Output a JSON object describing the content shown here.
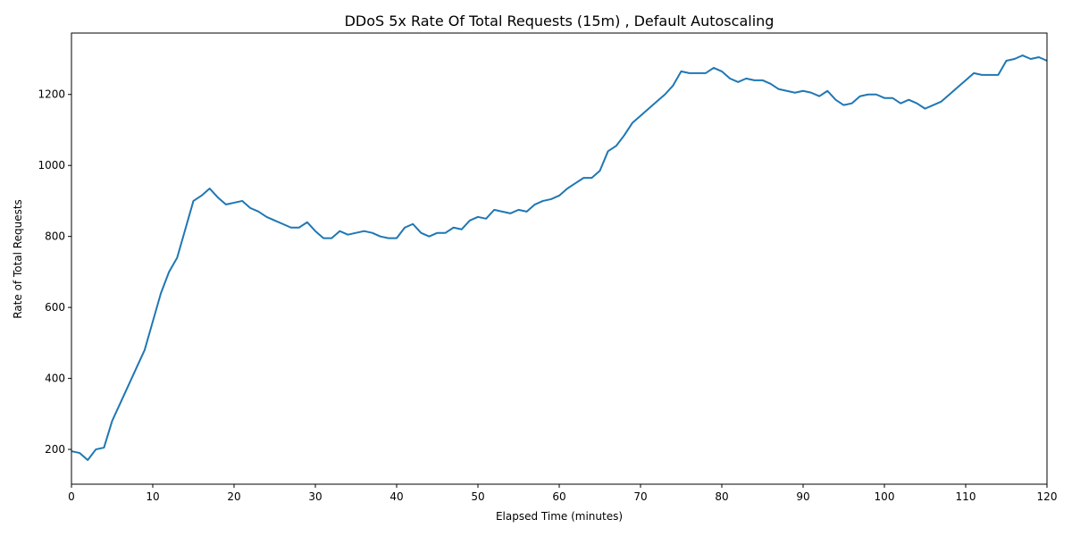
{
  "chart_data": {
    "type": "line",
    "title": "DDoS 5x Rate Of Total Requests (15m) , Default Autoscaling",
    "x_label": "Elapsed Time (minutes)",
    "y_label": "Rate of Total Requests",
    "x": [
      0,
      1,
      2,
      3,
      4,
      5,
      6,
      7,
      8,
      9,
      10,
      11,
      12,
      13,
      14,
      15,
      16,
      17,
      18,
      19,
      20,
      21,
      22,
      23,
      24,
      25,
      26,
      27,
      28,
      29,
      30,
      31,
      32,
      33,
      34,
      35,
      36,
      37,
      38,
      39,
      40,
      41,
      42,
      43,
      44,
      45,
      46,
      47,
      48,
      49,
      50,
      51,
      52,
      53,
      54,
      55,
      56,
      57,
      58,
      59,
      60,
      61,
      62,
      63,
      64,
      65,
      66,
      67,
      68,
      69,
      70,
      71,
      72,
      73,
      74,
      75,
      76,
      77,
      78,
      79,
      80,
      81,
      82,
      83,
      84,
      85,
      86,
      87,
      88,
      89,
      90,
      91,
      92,
      93,
      94,
      95,
      96,
      97,
      98,
      99,
      100,
      101,
      102,
      103,
      104,
      105,
      106,
      107,
      108,
      109,
      110,
      111,
      112,
      113,
      114,
      115,
      116,
      117,
      118,
      119,
      120
    ],
    "series": [
      {
        "name": "Rate of Total Requests",
        "color": "#1f77b4",
        "values": [
          195,
          190,
          170,
          200,
          205,
          280,
          330,
          380,
          430,
          480,
          560,
          640,
          700,
          740,
          820,
          900,
          915,
          935,
          910,
          890,
          895,
          900,
          880,
          870,
          855,
          845,
          835,
          825,
          825,
          840,
          815,
          795,
          795,
          815,
          805,
          810,
          815,
          810,
          800,
          795,
          795,
          825,
          835,
          810,
          800,
          810,
          810,
          825,
          820,
          845,
          855,
          850,
          875,
          870,
          865,
          875,
          870,
          890,
          900,
          905,
          915,
          935,
          950,
          965,
          965,
          985,
          1040,
          1055,
          1085,
          1120,
          1140,
          1160,
          1180,
          1200,
          1225,
          1265,
          1260,
          1260,
          1260,
          1275,
          1265,
          1245,
          1235,
          1245,
          1240,
          1240,
          1230,
          1215,
          1210,
          1205,
          1210,
          1205,
          1195,
          1210,
          1185,
          1170,
          1175,
          1195,
          1200,
          1200,
          1190,
          1190,
          1175,
          1185,
          1175,
          1160,
          1170,
          1180,
          1200,
          1220,
          1240,
          1260,
          1255,
          1255,
          1255,
          1295,
          1300,
          1310,
          1300,
          1305,
          1295
        ]
      }
    ],
    "xlim": [
      0,
      120
    ],
    "xticks": [
      0,
      10,
      20,
      30,
      40,
      50,
      60,
      70,
      80,
      90,
      100,
      110,
      120
    ],
    "ylim": [
      102,
      1373
    ],
    "yticks": [
      200,
      400,
      600,
      800,
      1000,
      1200
    ],
    "grid": false
  }
}
